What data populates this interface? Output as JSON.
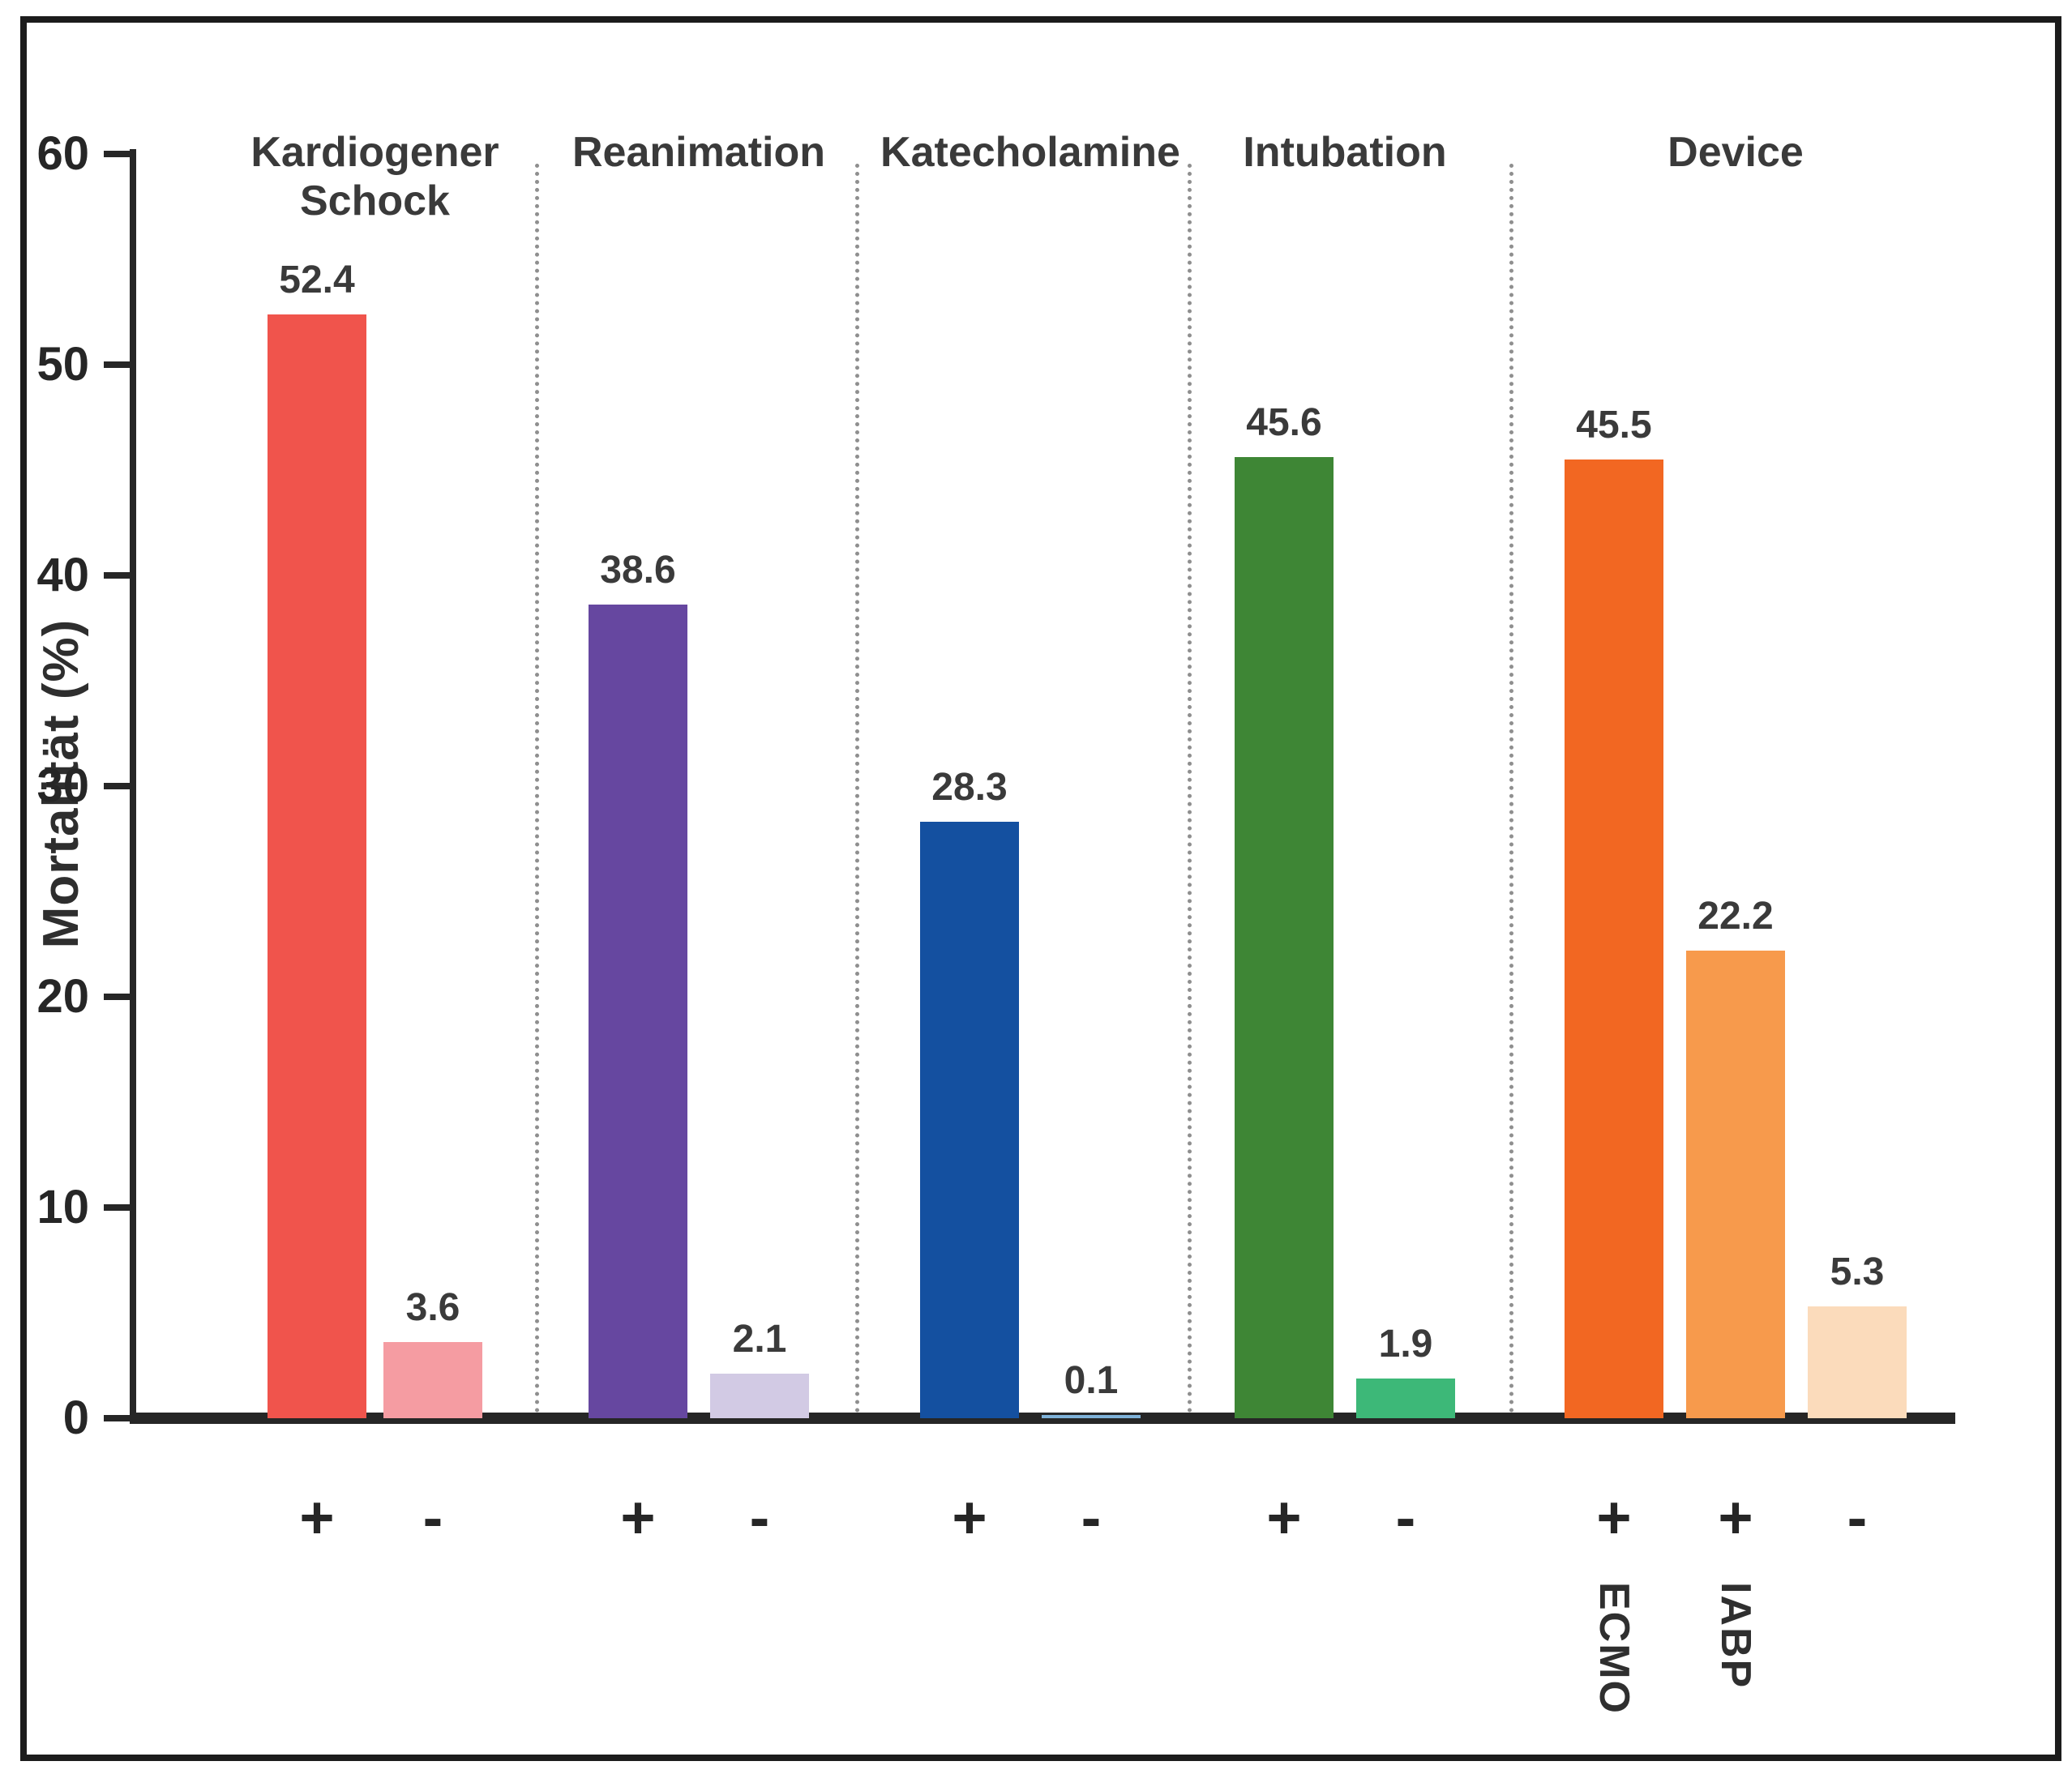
{
  "figure": {
    "frame_color": "#1c1c1c",
    "background_color": "#ffffff"
  },
  "chart_data": {
    "type": "bar",
    "title": "",
    "xlabel": "",
    "ylabel": "Mortalität (%)",
    "ylim": [
      0,
      60
    ],
    "yticks": [
      0,
      10,
      20,
      30,
      40,
      50,
      60
    ],
    "grid": false,
    "legend": "none",
    "separator_style": "vertical dotted lines between groups",
    "axis_color": "#262626",
    "divider_color": "#8f8f8f",
    "text_color": "#3a3a3a",
    "groups": [
      {
        "label": "Kardiogener Schock",
        "bars": [
          {
            "x_label": "+",
            "value": 52.4,
            "color": "#F0544C"
          },
          {
            "x_label": "-",
            "value": 3.6,
            "color": "#F59CA2"
          }
        ]
      },
      {
        "label": "Reanimation",
        "bars": [
          {
            "x_label": "+",
            "value": 38.6,
            "color": "#6647A0"
          },
          {
            "x_label": "-",
            "value": 2.1,
            "color": "#D2CAE4"
          }
        ]
      },
      {
        "label": "Katecholamine",
        "bars": [
          {
            "x_label": "+",
            "value": 28.3,
            "color": "#1450A0"
          },
          {
            "x_label": "-",
            "value": 0.1,
            "color": "#7FB2D9"
          }
        ]
      },
      {
        "label": "Intubation",
        "bars": [
          {
            "x_label": "+",
            "value": 45.6,
            "color": "#3E8635"
          },
          {
            "x_label": "-",
            "value": 1.9,
            "color": "#3DB878"
          }
        ]
      },
      {
        "label": "Device",
        "bars": [
          {
            "x_label": "+",
            "rotated_label": "ECMO",
            "value": 45.5,
            "color": "#F26722"
          },
          {
            "x_label": "+",
            "rotated_label": "IABP",
            "value": 22.2,
            "color": "#F79A4C"
          },
          {
            "x_label": "-",
            "value": 5.3,
            "color": "#FBDBBB"
          }
        ]
      }
    ]
  }
}
